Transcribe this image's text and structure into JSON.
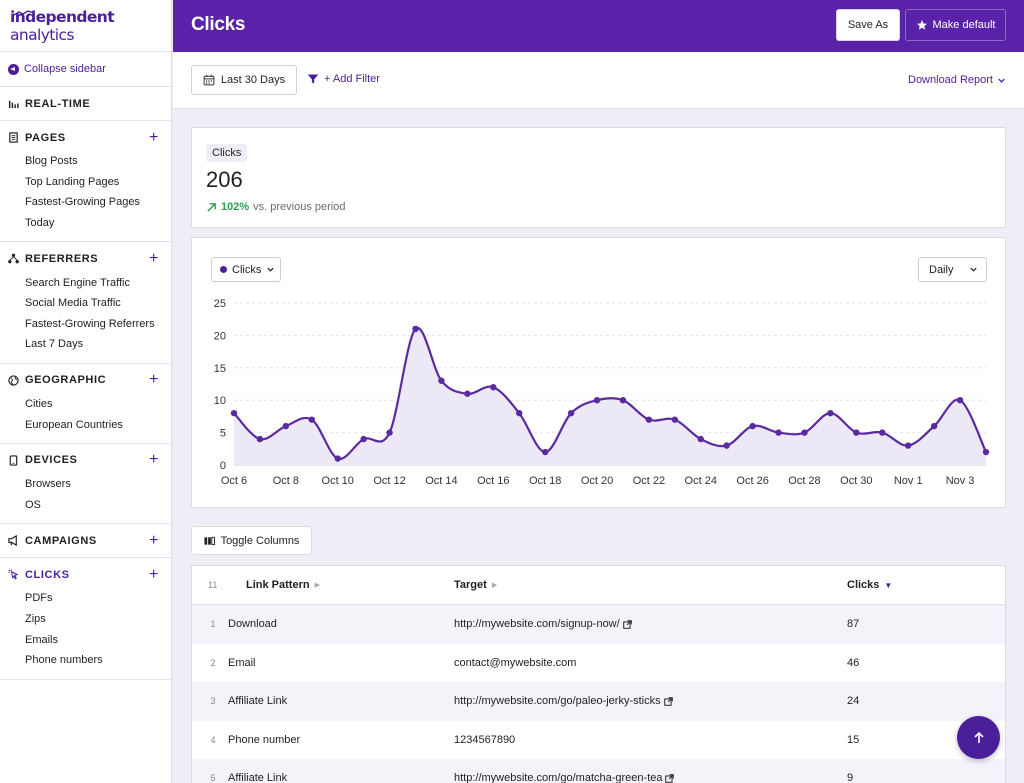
{
  "app": {
    "logo_bold": "independent",
    "logo_light": " analytics",
    "brand_color": "#5a22a8",
    "accent_color": "#4b1f9a"
  },
  "sidebar": {
    "collapse_label": "Collapse sidebar",
    "sections": [
      {
        "key": "realtime",
        "label": "REAL-TIME",
        "icon": "bar-chart-icon",
        "has_add": false,
        "items": []
      },
      {
        "key": "pages",
        "label": "PAGES",
        "icon": "page-icon",
        "has_add": true,
        "items": [
          "Blog Posts",
          "Top Landing Pages",
          "Fastest-Growing Pages",
          "Today"
        ]
      },
      {
        "key": "referrers",
        "label": "REFERRERS",
        "icon": "network-icon",
        "has_add": true,
        "items": [
          "Search Engine Traffic",
          "Social Media Traffic",
          "Fastest-Growing Referrers",
          "Last 7 Days"
        ]
      },
      {
        "key": "geographic",
        "label": "GEOGRAPHIC",
        "icon": "globe-icon",
        "has_add": true,
        "items": [
          "Cities",
          "European Countries"
        ]
      },
      {
        "key": "devices",
        "label": "DEVICES",
        "icon": "device-icon",
        "has_add": true,
        "items": [
          "Browsers",
          "OS"
        ]
      },
      {
        "key": "campaigns",
        "label": "CAMPAIGNS",
        "icon": "megaphone-icon",
        "has_add": true,
        "items": []
      },
      {
        "key": "clicks",
        "label": "CLICKS",
        "icon": "cursor-icon",
        "has_add": true,
        "active": true,
        "items": [
          "PDFs",
          "Zips",
          "Emails",
          "Phone numbers"
        ]
      }
    ]
  },
  "header": {
    "title": "Clicks",
    "save_as_label": "Save As",
    "make_default_label": "Make default"
  },
  "toolbar": {
    "date_range_label": "Last 30 Days",
    "add_filter_label": "+ Add Filter",
    "download_label": "Download Report"
  },
  "stats": {
    "label": "Clicks",
    "value": "206",
    "change_pct": "102%",
    "change_text": "vs. previous period",
    "change_color": "#2e9c4d"
  },
  "chart_controls": {
    "metric_label": "Clicks",
    "period_label": "Daily"
  },
  "chart_data": {
    "type": "line",
    "title": "",
    "xlabel": "",
    "ylabel": "",
    "ylim": [
      0,
      25
    ],
    "yticks": [
      "0",
      "5",
      "10",
      "15",
      "20",
      "25"
    ],
    "x": [
      "Oct 6",
      "Oct 7",
      "Oct 8",
      "Oct 9",
      "Oct 10",
      "Oct 11",
      "Oct 12",
      "Oct 13",
      "Oct 14",
      "Oct 15",
      "Oct 16",
      "Oct 17",
      "Oct 18",
      "Oct 19",
      "Oct 20",
      "Oct 21",
      "Oct 22",
      "Oct 23",
      "Oct 24",
      "Oct 25",
      "Oct 26",
      "Oct 27",
      "Oct 28",
      "Oct 29",
      "Oct 30",
      "Oct 31",
      "Nov 1",
      "Nov 2",
      "Nov 3",
      "Nov 4"
    ],
    "xtick_labels": [
      "Oct 6",
      "Oct 8",
      "Oct 10",
      "Oct 12",
      "Oct 14",
      "Oct 16",
      "Oct 18",
      "Oct 20",
      "Oct 22",
      "Oct 24",
      "Oct 26",
      "Oct 28",
      "Oct 30",
      "Nov 1",
      "Nov 3"
    ],
    "series": [
      {
        "values": [
          8,
          4,
          6,
          7,
          1,
          4,
          5,
          21,
          13,
          11,
          12,
          8,
          2,
          8,
          10,
          10,
          7,
          7,
          4,
          3,
          6,
          5,
          5,
          8,
          5,
          5,
          3,
          6,
          10,
          2
        ]
      }
    ],
    "grid": true,
    "line_color": "#5a2aa0",
    "fill_color": "#ede8f6"
  },
  "table": {
    "count": "11",
    "columns": {
      "pattern": "Link Pattern",
      "target": "Target",
      "clicks": "Clicks"
    },
    "rows": [
      {
        "num": "1",
        "pattern": "Download",
        "target": "http://mywebsite.com/signup-now/",
        "external": true,
        "clicks": "87"
      },
      {
        "num": "2",
        "pattern": "Email",
        "target": "contact@mywebsite.com",
        "external": false,
        "clicks": "46"
      },
      {
        "num": "3",
        "pattern": "Affiliate Link",
        "target": "http://mywebsite.com/go/paleo-jerky-sticks",
        "external": true,
        "clicks": "24"
      },
      {
        "num": "4",
        "pattern": "Phone number",
        "target": "1234567890",
        "external": false,
        "clicks": "15"
      },
      {
        "num": "5",
        "pattern": "Affiliate Link",
        "target": "http://mywebsite.com/go/matcha-green-tea",
        "external": true,
        "clicks": "9"
      }
    ],
    "toggle_columns_label": "Toggle Columns"
  }
}
